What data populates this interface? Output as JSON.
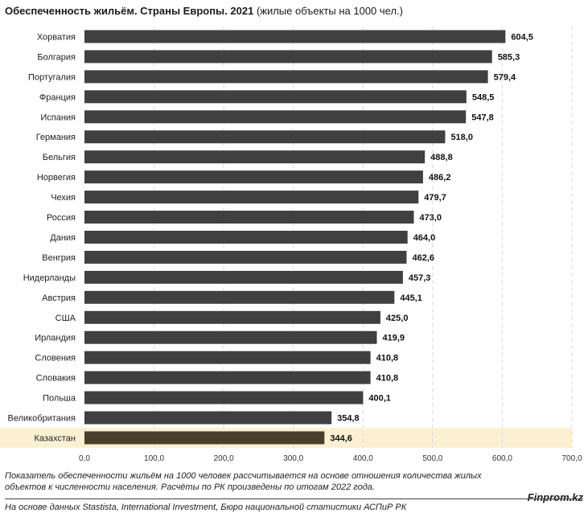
{
  "title": {
    "main": "Обеспеченность жильём. Страны Европы. 2021",
    "suffix": "(жилые объекты на 1000 чел.)"
  },
  "chart_data": {
    "type": "bar",
    "orientation": "horizontal",
    "categories": [
      "Хорватия",
      "Болгария",
      "Португалия",
      "Франция",
      "Испания",
      "Германия",
      "Бельгия",
      "Норвегия",
      "Чехия",
      "Россия",
      "Дания",
      "Венгрия",
      "Нидерланды",
      "Австрия",
      "США",
      "Ирландия",
      "Словения",
      "Словакия",
      "Польша",
      "Великобритания",
      "Казахстан"
    ],
    "values": [
      604.5,
      585.3,
      579.4,
      548.5,
      547.8,
      518.0,
      488.8,
      486.2,
      479.7,
      473.0,
      464.0,
      462.6,
      457.3,
      445.1,
      425.0,
      419.9,
      410.8,
      410.8,
      400.1,
      354.8,
      344.6
    ],
    "value_labels": [
      "604,5",
      "585,3",
      "579,4",
      "548,5",
      "547,8",
      "518,0",
      "488,8",
      "486,2",
      "479,7",
      "473,0",
      "464,0",
      "462,6",
      "457,3",
      "445,1",
      "425,0",
      "419,9",
      "410,8",
      "410,8",
      "400,1",
      "354,8",
      "344,6"
    ],
    "xlim": [
      0,
      700
    ],
    "x_ticks": [
      0,
      100,
      200,
      300,
      400,
      500,
      600,
      700
    ],
    "x_tick_labels": [
      "0,0",
      "100,0",
      "200,0",
      "300,0",
      "400,0",
      "500,0",
      "600,0",
      "700,0"
    ],
    "grid": "vertical dashed",
    "highlight_category": "Казахстан",
    "colors": {
      "bar": "#404040",
      "highlight_bar": "#4a3f2c",
      "highlight_band": "#fbf1d2",
      "grid": "#d9d9d9"
    }
  },
  "footer": {
    "note": "Показатель обеспеченности жильём на 1000 человек рассчитывается на основе отношения количества жилых объектов к численности населения. Расчёты по РК произведены по итогам 2022 года.",
    "source": "На основе данных Stastista, International Investment, Бюро национальной статистики АСПиР РК",
    "brand": "Finprom.kz"
  }
}
